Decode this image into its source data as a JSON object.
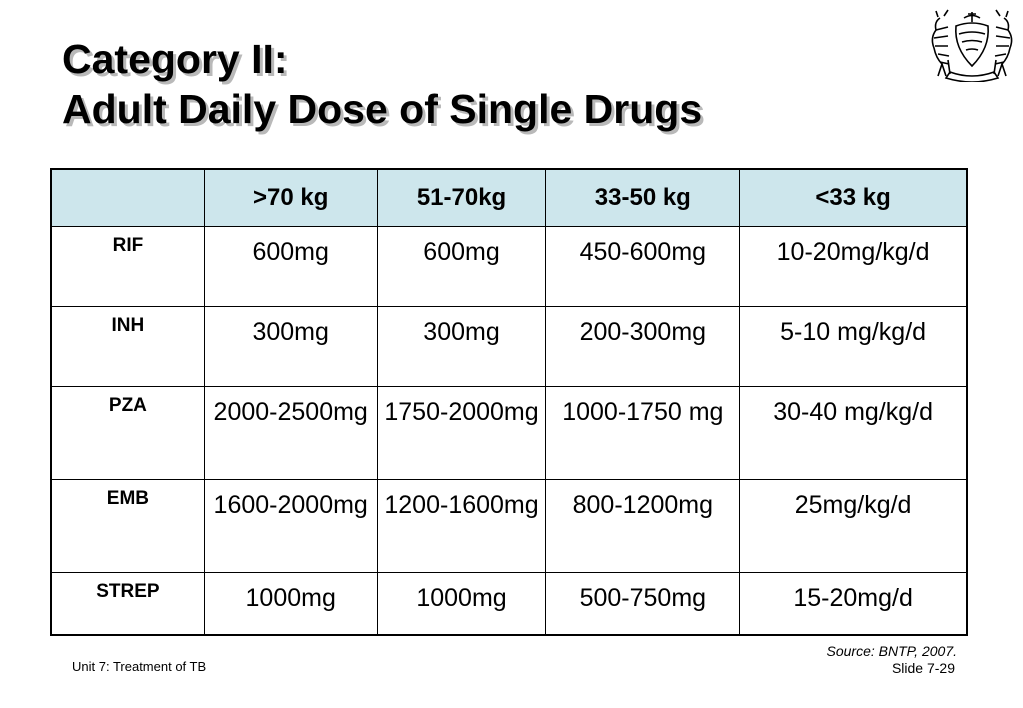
{
  "slide": {
    "title_line1": "Category II:",
    "title_line2": "Adult Daily Dose of Single Drugs",
    "logo_icon": "botswana-coat-of-arms-icon",
    "source": "Source: BNTP, 2007.",
    "slide_number": "Slide 7-29",
    "unit_label": "Unit 7: Treatment of TB"
  },
  "table": {
    "header_color": "#cde6ec",
    "columns": [
      "",
      ">70 kg",
      "51-70kg",
      "33-50 kg",
      "<33 kg"
    ],
    "rows": [
      {
        "drug": "RIF",
        "cells": [
          "600mg",
          "600mg",
          "450-600mg",
          "10-20mg/kg/d"
        ]
      },
      {
        "drug": "INH",
        "cells": [
          "300mg",
          "300mg",
          "200-300mg",
          "5-10 mg/kg/d"
        ]
      },
      {
        "drug": "PZA",
        "cells": [
          "2000-2500mg",
          "1750-2000mg",
          "1000-1750 mg",
          "30-40 mg/kg/d"
        ]
      },
      {
        "drug": "EMB",
        "cells": [
          "1600-2000mg",
          "1200-1600mg",
          "800-1200mg",
          "25mg/kg/d"
        ]
      },
      {
        "drug": "STREP",
        "cells": [
          "1000mg",
          "1000mg",
          "500-750mg",
          "15-20mg/d"
        ]
      }
    ]
  }
}
